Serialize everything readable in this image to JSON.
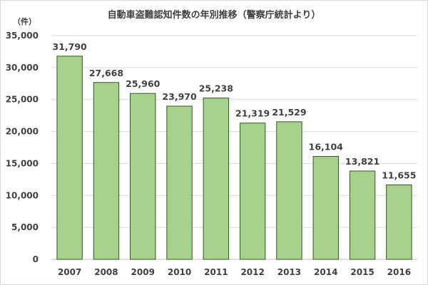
{
  "chart_data": {
    "type": "bar",
    "title": "自動車盗難認知件数の年別推移（警察庁統計より）",
    "unit_label": "（件）",
    "xlabel": "",
    "ylabel": "",
    "categories": [
      "2007",
      "2008",
      "2009",
      "2010",
      "2011",
      "2012",
      "2013",
      "2014",
      "2015",
      "2016"
    ],
    "values": [
      31790,
      27668,
      25960,
      23970,
      25238,
      21319,
      21529,
      16104,
      13821,
      11655
    ],
    "value_labels": [
      "31,790",
      "27,668",
      "25,960",
      "23,970",
      "25,238",
      "21,319",
      "21,529",
      "16,104",
      "13,821",
      "11,655"
    ],
    "ylim": [
      0,
      35000
    ],
    "y_ticks": [
      0,
      5000,
      10000,
      15000,
      20000,
      25000,
      30000,
      35000
    ],
    "y_tick_labels": [
      "0",
      "5,000",
      "10,000",
      "15,000",
      "20,000",
      "25,000",
      "30,000",
      "35,000"
    ],
    "grid": true,
    "colors": {
      "bar_fill": "#a9d18e",
      "bar_stroke": "#2e5a1c"
    }
  }
}
